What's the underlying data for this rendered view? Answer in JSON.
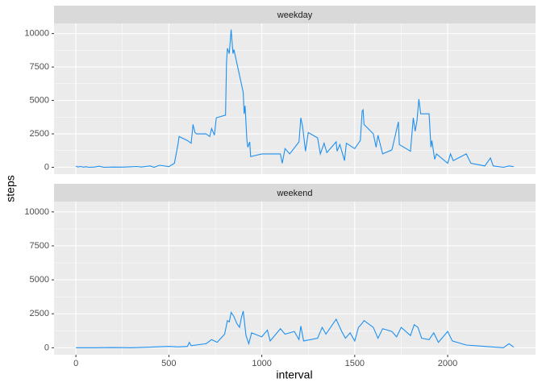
{
  "chart_data": {
    "type": "line",
    "x_label": "interval",
    "y_label": "steps",
    "color": "#1e90f0",
    "xlim": [
      -117.75,
      2472.75
    ],
    "xticks": [
      0,
      500,
      1000,
      1500,
      2000
    ],
    "ylim": [
      -512.5,
      10762.5
    ],
    "yticks": [
      0,
      2500,
      5000,
      7500,
      10000
    ],
    "grid": true,
    "facets": [
      {
        "name": "weekday",
        "x": [
          0,
          10,
          25,
          40,
          55,
          70,
          100,
          125,
          150,
          200,
          250,
          300,
          330,
          350,
          400,
          420,
          450,
          500,
          530,
          550,
          555,
          600,
          620,
          630,
          640,
          650,
          700,
          720,
          730,
          745,
          755,
          805,
          810,
          815,
          825,
          835,
          845,
          850,
          900,
          905,
          910,
          920,
          925,
          935,
          940,
          1000,
          1100,
          1110,
          1125,
          1150,
          1200,
          1210,
          1220,
          1235,
          1250,
          1300,
          1315,
          1335,
          1350,
          1400,
          1405,
          1420,
          1445,
          1455,
          1500,
          1530,
          1540,
          1545,
          1550,
          1600,
          1615,
          1625,
          1650,
          1700,
          1725,
          1735,
          1740,
          1800,
          1815,
          1825,
          1835,
          1845,
          1855,
          1900,
          1910,
          1915,
          1930,
          1940,
          2000,
          2015,
          2030,
          2100,
          2125,
          2200,
          2230,
          2245,
          2300,
          2330,
          2355
        ],
        "values": [
          90,
          20,
          60,
          10,
          40,
          0,
          20,
          80,
          0,
          20,
          10,
          40,
          60,
          20,
          100,
          0,
          150,
          50,
          300,
          1800,
          2300,
          2000,
          1800,
          3200,
          2600,
          2500,
          2500,
          2300,
          2900,
          2400,
          3700,
          3900,
          7800,
          8900,
          8500,
          10300,
          8500,
          8800,
          5600,
          4000,
          4600,
          2000,
          1500,
          1900,
          800,
          1000,
          1000,
          300,
          1400,
          1000,
          1900,
          3700,
          3000,
          1200,
          2600,
          2200,
          1000,
          1800,
          1100,
          1900,
          1200,
          1700,
          500,
          1800,
          1400,
          2000,
          4200,
          4300,
          3200,
          2500,
          1500,
          2400,
          1000,
          1300,
          2800,
          3400,
          1700,
          1200,
          3700,
          2700,
          3500,
          5100,
          4000,
          4000,
          1500,
          2000,
          600,
          1000,
          300,
          1000,
          500,
          1000,
          300,
          100,
          700,
          100,
          0,
          100,
          50
        ]
      },
      {
        "name": "weekend",
        "x": [
          0,
          100,
          200,
          300,
          400,
          500,
          550,
          600,
          610,
          620,
          700,
          730,
          760,
          800,
          815,
          825,
          835,
          850,
          865,
          880,
          890,
          900,
          915,
          930,
          945,
          1000,
          1030,
          1045,
          1100,
          1125,
          1175,
          1200,
          1210,
          1225,
          1300,
          1325,
          1345,
          1400,
          1430,
          1450,
          1475,
          1500,
          1520,
          1540,
          1550,
          1600,
          1625,
          1650,
          1700,
          1725,
          1750,
          1800,
          1820,
          1840,
          1860,
          1900,
          1925,
          1950,
          2000,
          2025,
          2100,
          2200,
          2300,
          2330,
          2355
        ],
        "values": [
          0,
          0,
          20,
          0,
          50,
          100,
          60,
          100,
          400,
          150,
          300,
          600,
          400,
          1000,
          2000,
          1900,
          2600,
          2300,
          1800,
          1500,
          2200,
          2700,
          900,
          300,
          1100,
          800,
          1300,
          500,
          1400,
          1000,
          1200,
          600,
          1600,
          500,
          700,
          1500,
          1000,
          2100,
          1200,
          700,
          1100,
          500,
          1500,
          1800,
          2000,
          1500,
          700,
          1400,
          1200,
          800,
          1500,
          900,
          1700,
          1500,
          700,
          600,
          1100,
          400,
          1200,
          500,
          200,
          100,
          0,
          300,
          50
        ]
      }
    ]
  }
}
